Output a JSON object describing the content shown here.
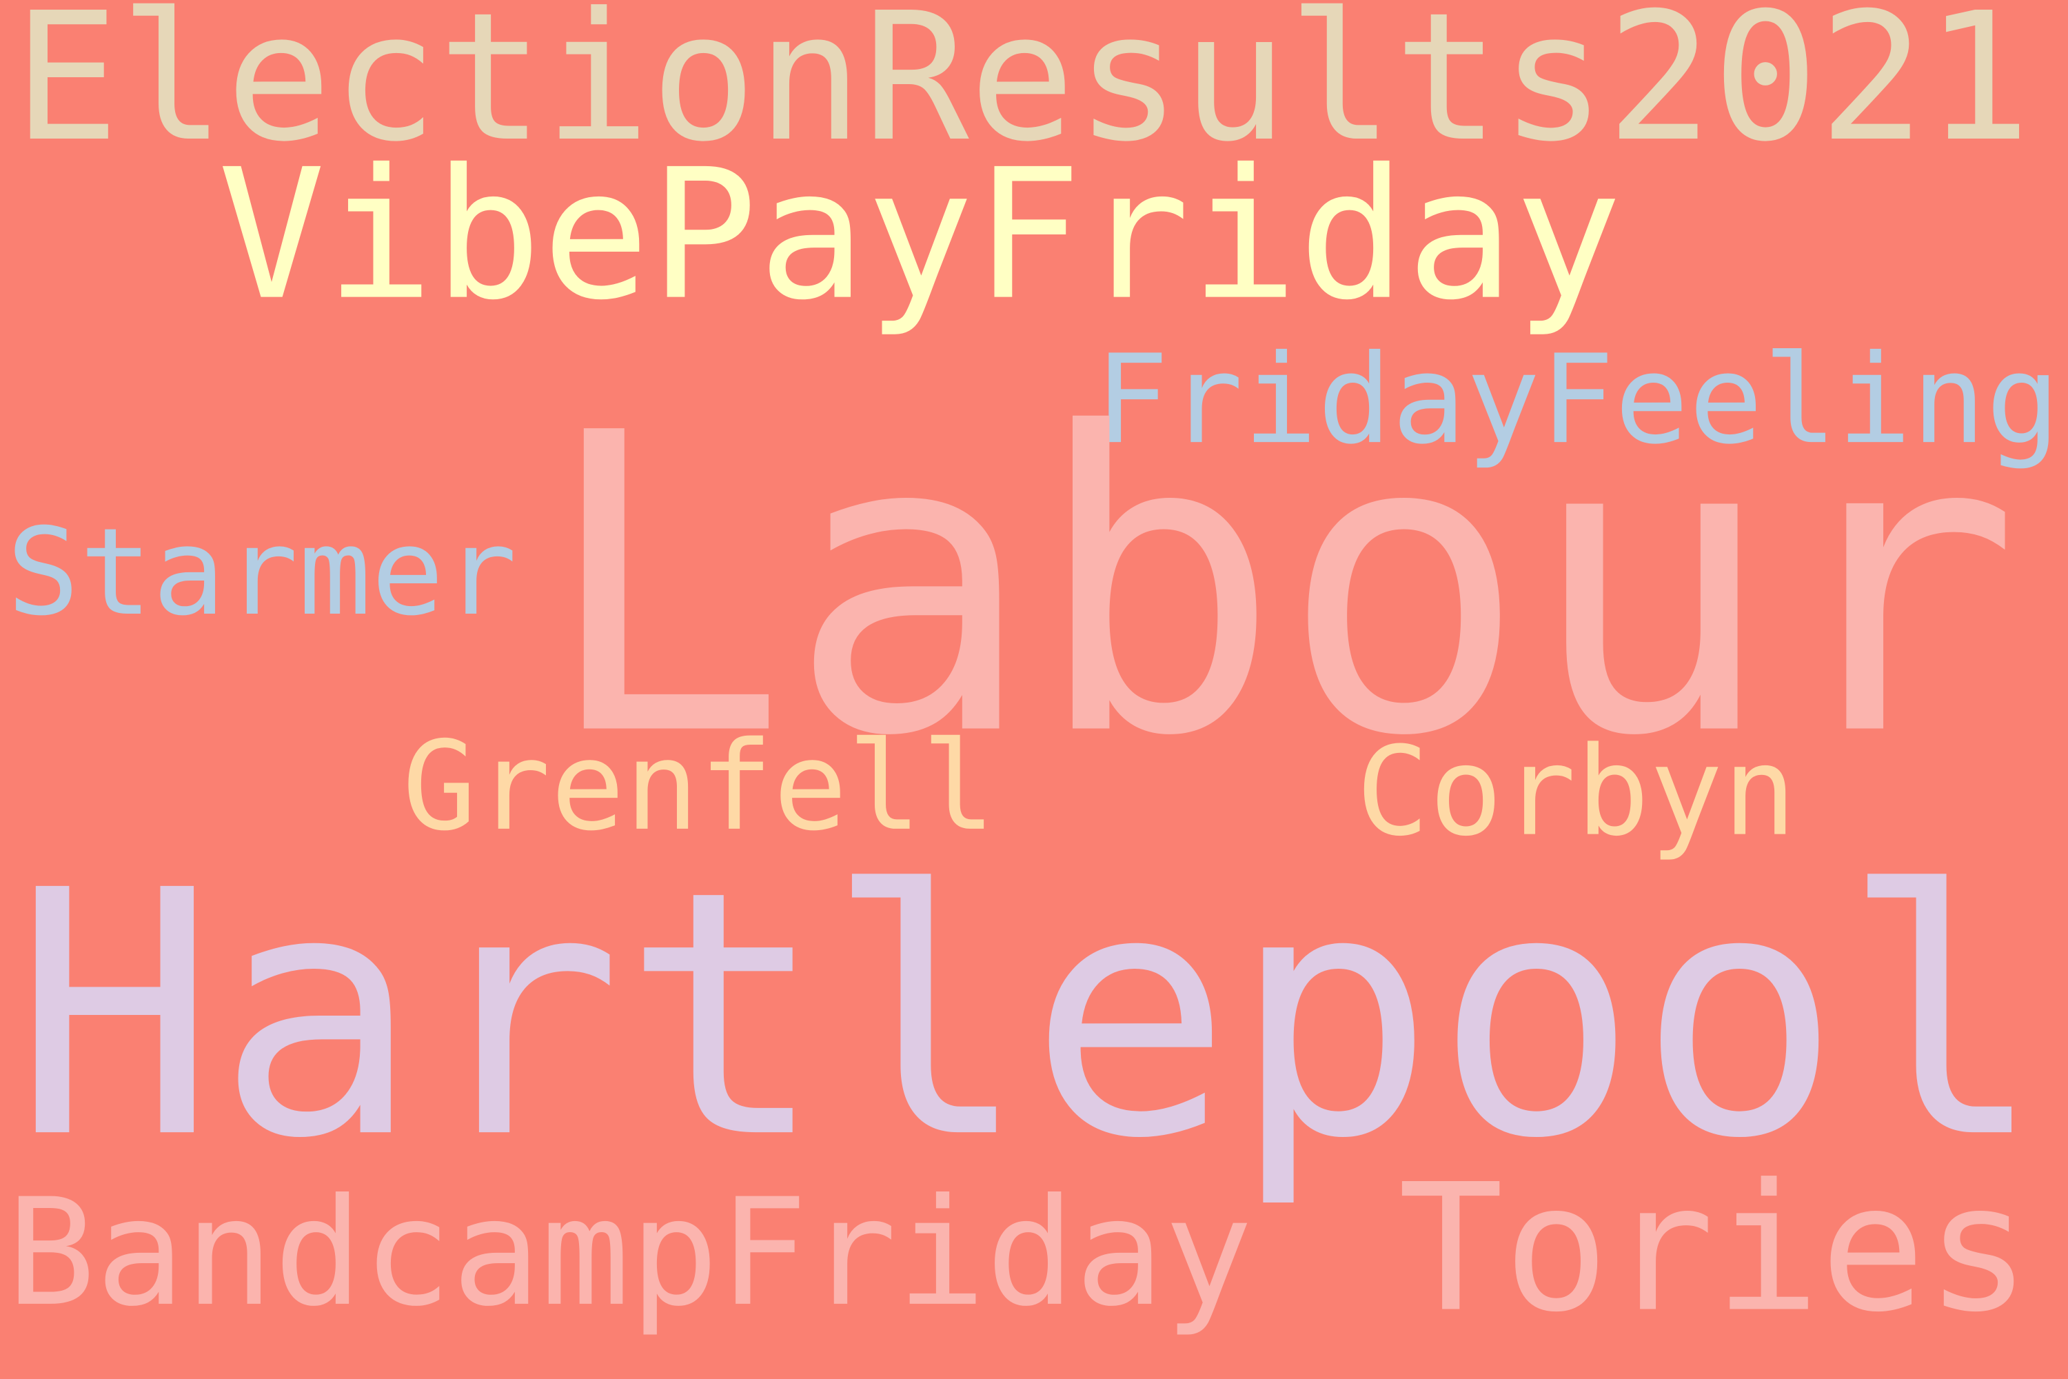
{
  "words": [
    "ElectionResults2021",
    "VibePayFriday",
    "FridayFeeling",
    "Starmer",
    "Labour",
    "Grenfell",
    "Corbyn",
    "Hartlepool",
    "BandcampFriday",
    "Tories"
  ]
}
